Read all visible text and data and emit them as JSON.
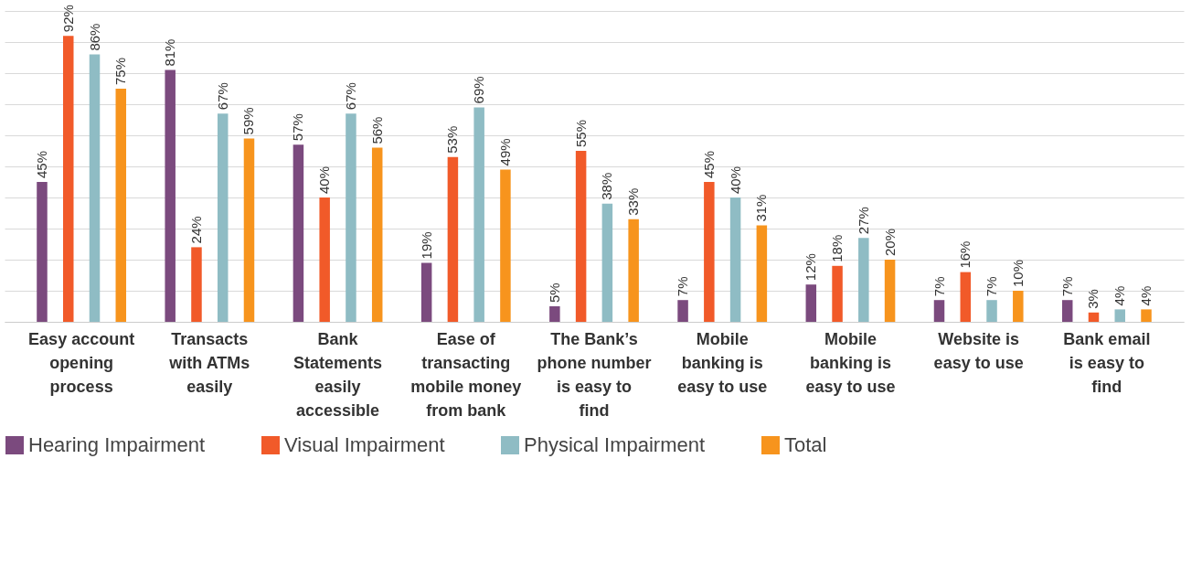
{
  "chart_data": {
    "type": "bar",
    "categories": [
      "Easy account opening process",
      "Transacts with ATMs easily",
      "Bank Statements easily accessible",
      "Ease of transacting mobile money from bank",
      "The Bank’s phone number is easy to find",
      "Mobile banking is easy to use",
      "Mobile banking is easy to use",
      "Website is easy to use",
      "Bank email is easy to find"
    ],
    "series": [
      {
        "name": "Hearing Impairment",
        "color": "#7b4a7e",
        "values": [
          45,
          81,
          57,
          19,
          5,
          7,
          12,
          7,
          7
        ],
        "value_labels": [
          "45%",
          "81%",
          "57%",
          "19%",
          "5%",
          "7%",
          "12%",
          "7%",
          "7%"
        ]
      },
      {
        "name": "Visual Impairment",
        "color": "#f15a29",
        "values": [
          92,
          24,
          40,
          53,
          55,
          45,
          18,
          16,
          3
        ],
        "value_labels": [
          "92%",
          "24%",
          "40%",
          "53%",
          "55%",
          "45%",
          "18%",
          "16%",
          "3%"
        ]
      },
      {
        "name": "Physical Impairment",
        "color": "#8fbcc4",
        "values": [
          86,
          67,
          67,
          69,
          38,
          40,
          27,
          7,
          4
        ],
        "value_labels": [
          "86%",
          "67%",
          "67%",
          "69%",
          "38%",
          "40%",
          "27%",
          "7%",
          "4%"
        ]
      },
      {
        "name": "Total",
        "color": "#f7941d",
        "values": [
          75,
          59,
          56,
          49,
          33,
          31,
          20,
          10,
          4
        ],
        "value_labels": [
          "75%",
          "59%",
          "56%",
          "49%",
          "33%",
          "31%",
          "20%",
          "10%",
          "4%"
        ]
      }
    ],
    "tick_labels": "x",
    "grid": "y",
    "legend": "bottom"
  }
}
